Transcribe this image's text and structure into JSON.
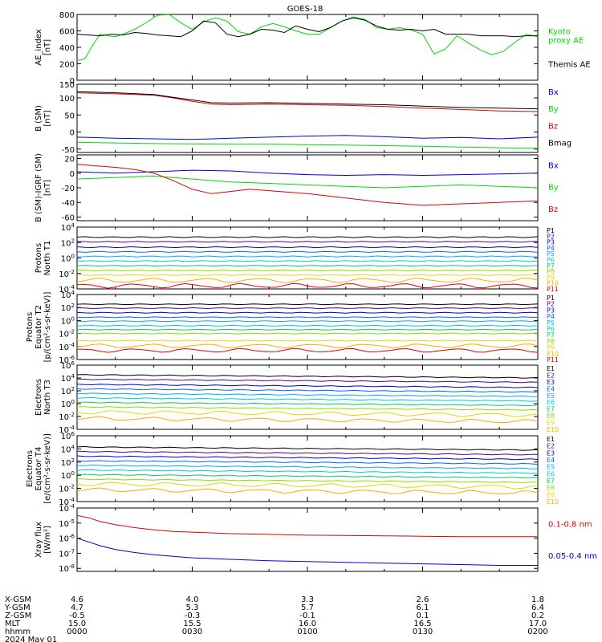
{
  "title": "GOES-18",
  "colors": {
    "black": "#000000",
    "red": "#dd0000",
    "green": "#00dd00",
    "blue": "#0000dd",
    "P": [
      "#000000",
      "#550088",
      "#0000cc",
      "#0066ff",
      "#00aaff",
      "#00cccc",
      "#00cc66",
      "#88dd00",
      "#dddd00",
      "#ffaa00",
      "#dd0000"
    ],
    "E": [
      "#000000",
      "#550088",
      "#0000cc",
      "#0066ff",
      "#00aaff",
      "#00cccc",
      "#00cc66",
      "#88dd00",
      "#dddd00",
      "#ffaa00",
      "#dd0000"
    ]
  },
  "chart_data": [
    {
      "type": "line",
      "id": "ae",
      "ylabel": "AE_index\n[nT]",
      "ylim": [
        0,
        800
      ],
      "yticks": [
        "800",
        "600",
        "400",
        "200",
        "0"
      ],
      "log": false,
      "series": [
        {
          "name": "Kyoto\nproxy AE",
          "color": "#00dd00",
          "x": [
            0,
            2,
            4,
            6,
            8,
            10,
            12,
            15,
            18,
            21,
            24,
            27,
            30,
            33,
            36,
            39,
            42,
            45,
            48,
            51,
            54,
            57,
            60,
            63,
            66,
            69,
            72,
            75,
            78,
            81,
            84,
            87,
            90,
            93,
            96,
            99,
            102,
            105,
            108,
            111,
            114,
            117,
            120
          ],
          "y": [
            240,
            260,
            420,
            560,
            540,
            530,
            560,
            620,
            700,
            790,
            800,
            700,
            620,
            710,
            760,
            720,
            590,
            560,
            650,
            690,
            650,
            600,
            560,
            560,
            640,
            720,
            770,
            740,
            640,
            620,
            640,
            610,
            560,
            320,
            380,
            540,
            450,
            370,
            310,
            350,
            460,
            560,
            530
          ]
        },
        {
          "name": "Themis AE",
          "color": "#000000",
          "x": [
            0,
            3,
            6,
            9,
            12,
            15,
            18,
            21,
            24,
            27,
            30,
            33,
            36,
            39,
            42,
            45,
            48,
            51,
            54,
            57,
            60,
            63,
            66,
            69,
            72,
            75,
            78,
            81,
            84,
            87,
            90,
            93,
            96,
            99,
            102,
            105,
            108,
            111,
            114,
            117,
            120
          ],
          "y": [
            560,
            550,
            540,
            560,
            550,
            580,
            570,
            550,
            540,
            530,
            600,
            720,
            700,
            560,
            530,
            560,
            620,
            610,
            580,
            660,
            620,
            590,
            640,
            720,
            760,
            730,
            660,
            620,
            610,
            620,
            600,
            620,
            560,
            560,
            560,
            540,
            540,
            540,
            530,
            540,
            540
          ]
        }
      ]
    },
    {
      "type": "line",
      "id": "bsm",
      "ylabel": "B (SM)\n[nT]",
      "ylim": [
        -60,
        140
      ],
      "yticks": [
        "150",
        "100",
        "50",
        "0",
        "-50"
      ],
      "log": false,
      "series": [
        {
          "name": "Bx",
          "color": "#0000dd",
          "x": [
            0,
            10,
            20,
            30,
            40,
            50,
            60,
            70,
            80,
            90,
            100,
            110,
            120
          ],
          "y": [
            -15,
            -18,
            -20,
            -22,
            -18,
            -15,
            -12,
            -10,
            -14,
            -18,
            -16,
            -20,
            -15
          ]
        },
        {
          "name": "By",
          "color": "#00dd00",
          "x": [
            0,
            10,
            20,
            30,
            40,
            50,
            60,
            70,
            80,
            90,
            100,
            110,
            120
          ],
          "y": [
            -30,
            -32,
            -34,
            -35,
            -36,
            -36,
            -37,
            -38,
            -40,
            -42,
            -44,
            -46,
            -48
          ]
        },
        {
          "name": "Bz",
          "color": "#dd0000",
          "x": [
            0,
            10,
            20,
            25,
            30,
            35,
            40,
            50,
            60,
            70,
            80,
            90,
            100,
            110,
            120
          ],
          "y": [
            115,
            112,
            108,
            100,
            90,
            82,
            80,
            82,
            80,
            78,
            75,
            70,
            66,
            62,
            60
          ]
        },
        {
          "name": "Bmag",
          "color": "#000000",
          "x": [
            0,
            10,
            20,
            25,
            30,
            35,
            40,
            50,
            60,
            70,
            80,
            90,
            100,
            110,
            120
          ],
          "y": [
            118,
            115,
            110,
            102,
            94,
            86,
            85,
            86,
            84,
            82,
            80,
            76,
            72,
            70,
            68
          ]
        }
      ]
    },
    {
      "type": "line",
      "id": "bdiff",
      "ylabel": "B (SM)-IGRF (SM)\n[nT]",
      "ylim": [
        -65,
        25
      ],
      "yticks": [
        "20",
        "0",
        "-20",
        "-40",
        "-60"
      ],
      "log": false,
      "series": [
        {
          "name": "Bx",
          "color": "#0000dd",
          "x": [
            0,
            10,
            20,
            30,
            40,
            50,
            60,
            70,
            80,
            90,
            100,
            110,
            120
          ],
          "y": [
            2,
            0,
            2,
            4,
            3,
            0,
            -2,
            -3,
            -2,
            -3,
            -2,
            -1,
            0
          ]
        },
        {
          "name": "By",
          "color": "#00dd00",
          "x": [
            0,
            10,
            20,
            30,
            40,
            50,
            60,
            70,
            80,
            90,
            100,
            110,
            120
          ],
          "y": [
            -8,
            -6,
            -4,
            -8,
            -12,
            -14,
            -16,
            -18,
            -20,
            -18,
            -16,
            -18,
            -20
          ]
        },
        {
          "name": "Bz",
          "color": "#dd0000",
          "x": [
            0,
            5,
            10,
            15,
            20,
            25,
            30,
            35,
            40,
            45,
            50,
            60,
            70,
            80,
            90,
            100,
            110,
            120
          ],
          "y": [
            12,
            10,
            8,
            5,
            0,
            -10,
            -22,
            -28,
            -25,
            -22,
            -24,
            -28,
            -34,
            -40,
            -44,
            -42,
            -40,
            -38
          ]
        }
      ]
    },
    {
      "type": "line",
      "id": "pT1",
      "log": true,
      "ylabel": "Protons\nNorth T1",
      "ylim": [
        -4,
        4
      ],
      "yticks": [
        "10^4",
        "10^2",
        "10^0",
        "10^-2",
        "10^-4"
      ],
      "series_names": [
        "P1",
        "P2",
        "P3",
        "P4",
        "P5",
        "P6",
        "P7",
        "P8",
        "P9",
        "P10",
        "P11"
      ],
      "levels": [
        2.7,
        2.1,
        1.4,
        0.8,
        0.2,
        -0.4,
        -1.0,
        -1.6,
        -2.2,
        -2.9,
        -3.6
      ]
    },
    {
      "type": "line",
      "id": "pT2",
      "log": true,
      "ylabel": "Protons\nEquator T2\n[p/(cm²-s-sr-keV)]",
      "ylim": [
        -6,
        4
      ],
      "yticks": [
        "10^4",
        "10^2",
        "10^0",
        "10^-2",
        "10^-4",
        "10^-6"
      ],
      "series_names": [
        "P1",
        "P2",
        "P3",
        "P4",
        "P5",
        "P6",
        "P7",
        "P8",
        "P9",
        "P10",
        "P11"
      ],
      "levels": [
        2.5,
        1.9,
        1.2,
        0.5,
        -0.1,
        -0.8,
        -1.4,
        -2.0,
        -3.1,
        -3.9,
        -4.6
      ]
    },
    {
      "type": "line",
      "id": "eT3",
      "log": true,
      "ylabel": "Electrons\nNorth T3",
      "ylim": [
        -4,
        6
      ],
      "yticks": [
        "10^6",
        "10^4",
        "10^2",
        "10^0",
        "10^-2",
        "10^-4"
      ],
      "series_names": [
        "E1",
        "E2",
        "E3",
        "E4",
        "E5",
        "E6",
        "E7",
        "E8",
        "E9",
        "E10"
      ],
      "levels": [
        4.5,
        3.8,
        3.0,
        2.3,
        1.6,
        0.9,
        0.2,
        -0.5,
        -1.3,
        -2.3
      ]
    },
    {
      "type": "line",
      "id": "eT4",
      "log": true,
      "ylabel": "Electrons\nEquator T4\n[e/(cm²-s-sr-keV)]",
      "ylim": [
        -4,
        6
      ],
      "yticks": [
        "10^6",
        "10^4",
        "10^2",
        "10^0",
        "10^-2",
        "10^-4"
      ],
      "series_names": [
        "E1",
        "E2",
        "E3",
        "E4",
        "E5",
        "E6",
        "E7",
        "E8",
        "E9",
        "E10"
      ],
      "levels": [
        4.3,
        3.6,
        2.9,
        2.2,
        1.5,
        0.8,
        0.1,
        -0.6,
        -1.3,
        -2.2
      ]
    },
    {
      "type": "line",
      "id": "xray",
      "log": true,
      "ylabel": "Xray flux\n[W/m²]",
      "ylim": [
        -8.2,
        -4
      ],
      "yticks": [
        "10^-4",
        "10^-5",
        "10^-6",
        "10^-7",
        "10^-8"
      ],
      "series": [
        {
          "name": "0.1-0.8 nm",
          "color": "#dd0000",
          "x": [
            0,
            3,
            6,
            10,
            15,
            20,
            25,
            30,
            40,
            50,
            60,
            70,
            80,
            90,
            100,
            110,
            120
          ],
          "y": [
            -4.5,
            -4.65,
            -4.9,
            -5.1,
            -5.3,
            -5.45,
            -5.55,
            -5.6,
            -5.7,
            -5.75,
            -5.8,
            -5.82,
            -5.85,
            -5.87,
            -5.9,
            -5.9,
            -5.9
          ]
        },
        {
          "name": "0.05-0.4 nm",
          "color": "#0000dd",
          "x": [
            0,
            3,
            6,
            10,
            15,
            20,
            25,
            30,
            40,
            50,
            60,
            70,
            80,
            90,
            100,
            110,
            120
          ],
          "y": [
            -6.0,
            -6.25,
            -6.5,
            -6.75,
            -6.95,
            -7.1,
            -7.2,
            -7.3,
            -7.4,
            -7.5,
            -7.55,
            -7.6,
            -7.65,
            -7.7,
            -7.75,
            -7.8,
            -7.8
          ]
        }
      ]
    }
  ],
  "footer": {
    "labels": [
      "X-GSM",
      "Y-GSM",
      "Z-GSM",
      "MLT",
      "hhmm",
      "2024 May 01"
    ],
    "columns": [
      {
        "vals": [
          "4.6",
          "4.7",
          "-0.5",
          "15.0",
          "0000"
        ]
      },
      {
        "vals": [
          "4.0",
          "5.3",
          "-0.3",
          "15.5",
          "0030"
        ]
      },
      {
        "vals": [
          "3.3",
          "5.7",
          "-0.1",
          "16.0",
          "0100"
        ]
      },
      {
        "vals": [
          "2.6",
          "6.1",
          "0.1",
          "16.5",
          "0130"
        ]
      },
      {
        "vals": [
          "1.8",
          "6.4",
          "0.2",
          "17.0",
          "0200"
        ]
      }
    ]
  }
}
